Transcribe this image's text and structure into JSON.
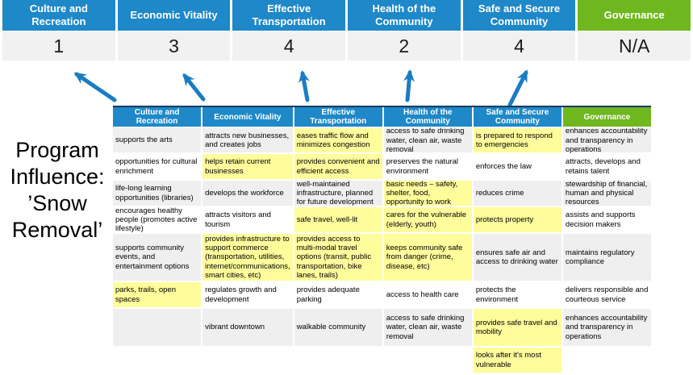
{
  "title": {
    "text": "Program Influence: ’Snow Removal’"
  },
  "colors": {
    "header_blue": "#1E88C8",
    "header_green": "#6FB71E",
    "score_row_gray": "#F1F1F1",
    "row_alt_gray": "#EFEFEF",
    "highlight_yellow": "#FFFC9C",
    "arrow_blue": "#1C7CC2",
    "table_border_navy": "#1B3A5E"
  },
  "scoreboard": {
    "columns": [
      {
        "label": "Culture and Recreation",
        "score": "1",
        "color": "blue"
      },
      {
        "label": "Economic Vitality",
        "score": "3",
        "color": "blue"
      },
      {
        "label": "Effective Transportation",
        "score": "4",
        "color": "blue"
      },
      {
        "label": "Health of the Community",
        "score": "2",
        "color": "blue"
      },
      {
        "label": "Safe and Secure Community",
        "score": "4",
        "color": "blue"
      },
      {
        "label": "Governance",
        "score": "N/A",
        "color": "green"
      }
    ]
  },
  "arrows": [
    {
      "name": "arrow-culture-and-recreation"
    },
    {
      "name": "arrow-economic-vitality"
    },
    {
      "name": "arrow-effective-transportation"
    },
    {
      "name": "arrow-health-of-the-community"
    },
    {
      "name": "arrow-safe-and-secure-community"
    }
  ],
  "matrix": {
    "headers": [
      {
        "label": "Culture and Recreation",
        "color": "blue"
      },
      {
        "label": "Economic Vitality",
        "color": "blue"
      },
      {
        "label": "Effective Transportation",
        "color": "blue"
      },
      {
        "label": "Health of the Community",
        "color": "blue"
      },
      {
        "label": "Safe and Secure Community",
        "color": "blue"
      },
      {
        "label": "Governance",
        "color": "green"
      }
    ],
    "rows": [
      [
        {
          "text": "supports the arts",
          "highlight": false
        },
        {
          "text": "attracts new businesses, and creates jobs",
          "highlight": false
        },
        {
          "text": "eases traffic flow and minimizes congestion",
          "highlight": true
        },
        {
          "text": "access to safe drinking water, clean air, waste removal",
          "highlight": false
        },
        {
          "text": "is prepared to respond to emergencies",
          "highlight": true
        },
        {
          "text": "enhances accountability and transparency in operations",
          "highlight": false
        }
      ],
      [
        {
          "text": "opportunities for cultural enrichment",
          "highlight": false
        },
        {
          "text": "helps retain current businesses",
          "highlight": true
        },
        {
          "text": "provides convenient and efficient access",
          "highlight": true
        },
        {
          "text": "preserves the natural environment",
          "highlight": false
        },
        {
          "text": "enforces the law",
          "highlight": false
        },
        {
          "text": "attracts, develops and retains talent",
          "highlight": false
        }
      ],
      [
        {
          "text": "life-long learning opportunities (libraries)",
          "highlight": false
        },
        {
          "text": "develops the workforce",
          "highlight": false
        },
        {
          "text": "well-maintained infrastructure, planned for future development",
          "highlight": false
        },
        {
          "text": "basic needs – safety, shelter, food, opportunity to work",
          "highlight": true
        },
        {
          "text": "reduces crime",
          "highlight": false
        },
        {
          "text": "stewardship of financial, human and physical resources",
          "highlight": false
        }
      ],
      [
        {
          "text": "encourages healthy people (promotes active lifestyle)",
          "highlight": false
        },
        {
          "text": "attracts visitors and tourism",
          "highlight": false
        },
        {
          "text": "safe travel, well-lit",
          "highlight": true
        },
        {
          "text": "cares for the vulnerable (elderly, youth)",
          "highlight": true
        },
        {
          "text": "protects property",
          "highlight": true
        },
        {
          "text": "assists and supports decision makers",
          "highlight": false
        }
      ],
      [
        {
          "text": "supports community events, and entertainment options",
          "highlight": false
        },
        {
          "text": "provides infrastructure to support commerce (transportation, utilities, internet/communications, smart cities, etc)",
          "highlight": true
        },
        {
          "text": "provides access to multi-modal travel options (transit, public transportation, bike lanes, trails)",
          "highlight": true
        },
        {
          "text": "keeps community safe from danger (crime, disease, etc)",
          "highlight": true
        },
        {
          "text": "ensures safe air and access to drinking water",
          "highlight": false
        },
        {
          "text": "maintains regulatory compliance",
          "highlight": false
        }
      ],
      [
        {
          "text": "parks, trails, open spaces",
          "highlight": true
        },
        {
          "text": "regulates growth and development",
          "highlight": false
        },
        {
          "text": "provides adequate parking",
          "highlight": false
        },
        {
          "text": "access to health care",
          "highlight": false
        },
        {
          "text": "protects the environment",
          "highlight": false
        },
        {
          "text": "delivers responsible and courteous service",
          "highlight": false
        }
      ],
      [
        {
          "text": "",
          "highlight": false
        },
        {
          "text": "vibrant downtown",
          "highlight": false
        },
        {
          "text": "walkable community",
          "highlight": false
        },
        {
          "text": "access to safe drinking water, clean air, waste removal",
          "highlight": false
        },
        {
          "text": "provides safe travel and mobility",
          "highlight": true
        },
        {
          "text": "enhances accountability and transparency in operations",
          "highlight": false
        }
      ],
      [
        {
          "text": "",
          "highlight": false
        },
        {
          "text": "",
          "highlight": false
        },
        {
          "text": "",
          "highlight": false
        },
        {
          "text": "",
          "highlight": false
        },
        {
          "text": "looks after it's most vulnerable",
          "highlight": true
        },
        {
          "text": "",
          "highlight": false
        }
      ]
    ]
  }
}
